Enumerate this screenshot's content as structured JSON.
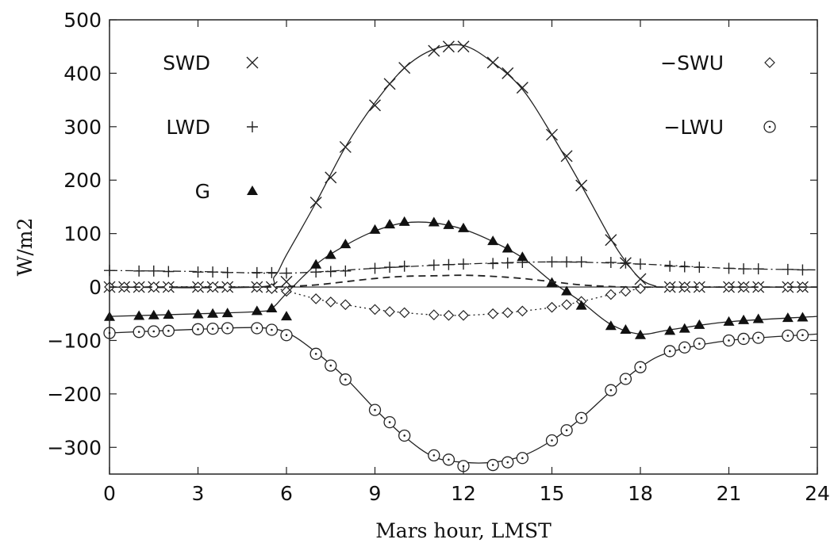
{
  "chart_data": {
    "type": "line",
    "title": "",
    "xlabel": "Mars hour, LMST",
    "ylabel": "W/m2",
    "xlim": [
      0,
      24
    ],
    "ylim": [
      -350,
      500
    ],
    "xticks": [
      0,
      3,
      6,
      9,
      12,
      15,
      18,
      21,
      24
    ],
    "yticks": [
      500,
      400,
      300,
      200,
      100,
      0,
      -100,
      -200,
      -300
    ],
    "xtick_labels": [
      "0",
      "3",
      "6",
      "9",
      "12",
      "15",
      "18",
      "21",
      "24"
    ],
    "ytick_labels": [
      "500",
      "400",
      "300",
      "200",
      "100",
      "0",
      "−100",
      "−200",
      "−300"
    ],
    "grid": false,
    "series": [
      {
        "name": "SWD",
        "marker": "x",
        "line_style": "solid",
        "points": [
          [
            0,
            0
          ],
          [
            0.5,
            0
          ],
          [
            1,
            0
          ],
          [
            1.5,
            0
          ],
          [
            2,
            0
          ],
          [
            3,
            0
          ],
          [
            3.5,
            0
          ],
          [
            4,
            0
          ],
          [
            5,
            0
          ],
          [
            5.5,
            0
          ],
          [
            6,
            10
          ],
          [
            7,
            158
          ],
          [
            7.5,
            205
          ],
          [
            8,
            262
          ],
          [
            9,
            340
          ],
          [
            9.5,
            380
          ],
          [
            10,
            410
          ],
          [
            11,
            442
          ],
          [
            11.5,
            450
          ],
          [
            12,
            450
          ],
          [
            13,
            420
          ],
          [
            13.5,
            400
          ],
          [
            14,
            373
          ],
          [
            15,
            285
          ],
          [
            15.5,
            245
          ],
          [
            16,
            190
          ],
          [
            17,
            88
          ],
          [
            17.5,
            45
          ],
          [
            18,
            15
          ],
          [
            19,
            0
          ],
          [
            19.5,
            0
          ],
          [
            20,
            0
          ],
          [
            21,
            0
          ],
          [
            21.5,
            0
          ],
          [
            22,
            0
          ],
          [
            23,
            0
          ],
          [
            23.5,
            0
          ]
        ],
        "curve": [
          [
            0,
            0
          ],
          [
            5,
            0
          ],
          [
            5.6,
            20
          ],
          [
            6,
            60
          ],
          [
            7,
            158
          ],
          [
            8,
            262
          ],
          [
            9,
            345
          ],
          [
            10,
            410
          ],
          [
            11,
            445
          ],
          [
            12,
            452
          ],
          [
            13,
            420
          ],
          [
            14,
            370
          ],
          [
            15,
            285
          ],
          [
            16,
            190
          ],
          [
            17,
            90
          ],
          [
            17.5,
            48
          ],
          [
            18,
            15
          ],
          [
            18.5,
            2
          ],
          [
            19,
            0
          ],
          [
            24,
            0
          ]
        ]
      },
      {
        "name": "LWD",
        "marker": "+",
        "line_style": "dashdot",
        "points": [
          [
            0,
            31
          ],
          [
            1,
            30
          ],
          [
            1.5,
            30
          ],
          [
            2,
            29
          ],
          [
            3,
            28
          ],
          [
            3.5,
            28
          ],
          [
            4,
            27
          ],
          [
            5,
            27
          ],
          [
            5.5,
            27
          ],
          [
            6,
            26
          ],
          [
            7,
            28
          ],
          [
            7.5,
            29
          ],
          [
            8,
            30
          ],
          [
            9,
            35
          ],
          [
            9.5,
            37
          ],
          [
            10,
            39
          ],
          [
            11,
            41
          ],
          [
            11.5,
            42
          ],
          [
            12,
            43
          ],
          [
            13,
            44
          ],
          [
            13.5,
            45
          ],
          [
            14,
            46
          ],
          [
            15,
            47
          ],
          [
            15.5,
            47
          ],
          [
            16,
            47
          ],
          [
            17,
            46
          ],
          [
            17.5,
            45
          ],
          [
            18,
            43
          ],
          [
            19,
            39
          ],
          [
            19.5,
            38
          ],
          [
            20,
            37
          ],
          [
            21,
            35
          ],
          [
            21.5,
            34
          ],
          [
            22,
            34
          ],
          [
            23,
            33
          ],
          [
            23.5,
            32
          ]
        ],
        "curve": [
          [
            0,
            31
          ],
          [
            3,
            29
          ],
          [
            6,
            26
          ],
          [
            9,
            35
          ],
          [
            12,
            43
          ],
          [
            15,
            47
          ],
          [
            18,
            43
          ],
          [
            21,
            35
          ],
          [
            24,
            32
          ]
        ]
      },
      {
        "name": "−SWU",
        "marker": "diamond",
        "line_style": "dotted",
        "points": [
          [
            0,
            0
          ],
          [
            0.5,
            0
          ],
          [
            1,
            0
          ],
          [
            1.5,
            0
          ],
          [
            2,
            0
          ],
          [
            3,
            0
          ],
          [
            3.5,
            0
          ],
          [
            4,
            0
          ],
          [
            5,
            0
          ],
          [
            5.5,
            -3
          ],
          [
            6,
            -8
          ],
          [
            7,
            -22
          ],
          [
            7.5,
            -28
          ],
          [
            8,
            -33
          ],
          [
            9,
            -42
          ],
          [
            9.5,
            -46
          ],
          [
            10,
            -48
          ],
          [
            11,
            -52
          ],
          [
            11.5,
            -53
          ],
          [
            12,
            -53
          ],
          [
            13,
            -50
          ],
          [
            13.5,
            -48
          ],
          [
            14,
            -45
          ],
          [
            15,
            -38
          ],
          [
            15.5,
            -33
          ],
          [
            16,
            -27
          ],
          [
            17,
            -14
          ],
          [
            17.5,
            -8
          ],
          [
            18,
            -3
          ],
          [
            19,
            0
          ],
          [
            19.5,
            0
          ],
          [
            20,
            0
          ],
          [
            21,
            0
          ],
          [
            21.5,
            0
          ],
          [
            22,
            0
          ],
          [
            23,
            0
          ],
          [
            23.5,
            0
          ]
        ],
        "curve": [
          [
            0,
            0
          ],
          [
            5,
            0
          ],
          [
            6,
            -8
          ],
          [
            7,
            -22
          ],
          [
            8,
            -33
          ],
          [
            9,
            -42
          ],
          [
            10,
            -48
          ],
          [
            11,
            -52
          ],
          [
            12,
            -53
          ],
          [
            13,
            -50
          ],
          [
            14,
            -45
          ],
          [
            15,
            -38
          ],
          [
            16,
            -27
          ],
          [
            17,
            -14
          ],
          [
            18,
            -3
          ],
          [
            19,
            0
          ],
          [
            24,
            0
          ]
        ]
      },
      {
        "name": "−LWU",
        "marker": "circle",
        "line_style": "solid",
        "points": [
          [
            0,
            -86
          ],
          [
            1,
            -84
          ],
          [
            1.5,
            -83
          ],
          [
            2,
            -82
          ],
          [
            3,
            -79
          ],
          [
            3.5,
            -78
          ],
          [
            4,
            -77
          ],
          [
            5,
            -77
          ],
          [
            5.5,
            -80
          ],
          [
            6,
            -90
          ],
          [
            7,
            -125
          ],
          [
            7.5,
            -147
          ],
          [
            8,
            -173
          ],
          [
            9,
            -230
          ],
          [
            9.5,
            -253
          ],
          [
            10,
            -278
          ],
          [
            11,
            -315
          ],
          [
            11.5,
            -323
          ],
          [
            12,
            -335
          ],
          [
            13,
            -333
          ],
          [
            13.5,
            -328
          ],
          [
            14,
            -320
          ],
          [
            15,
            -287
          ],
          [
            15.5,
            -268
          ],
          [
            16,
            -245
          ],
          [
            17,
            -193
          ],
          [
            17.5,
            -172
          ],
          [
            18,
            -150
          ],
          [
            19,
            -120
          ],
          [
            19.5,
            -113
          ],
          [
            20,
            -106
          ],
          [
            21,
            -100
          ],
          [
            21.5,
            -97
          ],
          [
            22,
            -95
          ],
          [
            23,
            -91
          ],
          [
            23.5,
            -90
          ]
        ],
        "curve": [
          [
            0,
            -86
          ],
          [
            3,
            -79
          ],
          [
            5,
            -76
          ],
          [
            6,
            -85
          ],
          [
            7,
            -122
          ],
          [
            8,
            -170
          ],
          [
            9,
            -228
          ],
          [
            10,
            -280
          ],
          [
            11,
            -318
          ],
          [
            12,
            -328
          ],
          [
            13,
            -328
          ],
          [
            14,
            -316
          ],
          [
            15,
            -287
          ],
          [
            16,
            -245
          ],
          [
            17,
            -195
          ],
          [
            18,
            -150
          ],
          [
            19,
            -122
          ],
          [
            21,
            -100
          ],
          [
            24,
            -88
          ]
        ]
      },
      {
        "name": "G",
        "marker": "triangle",
        "line_style": "solid",
        "points": [
          [
            0,
            -56
          ],
          [
            1,
            -54
          ],
          [
            1.5,
            -53
          ],
          [
            2,
            -52
          ],
          [
            3,
            -51
          ],
          [
            3.5,
            -50
          ],
          [
            4,
            -49
          ],
          [
            5,
            -45
          ],
          [
            5.5,
            -40
          ],
          [
            6,
            -55
          ],
          [
            7,
            42
          ],
          [
            7.5,
            60
          ],
          [
            8,
            80
          ],
          [
            9,
            107
          ],
          [
            9.5,
            117
          ],
          [
            10,
            122
          ],
          [
            11,
            121
          ],
          [
            11.5,
            116
          ],
          [
            12,
            110
          ],
          [
            13,
            86
          ],
          [
            13.5,
            72
          ],
          [
            14,
            56
          ],
          [
            15,
            8
          ],
          [
            15.5,
            -8
          ],
          [
            16,
            -35
          ],
          [
            17,
            -73
          ],
          [
            17.5,
            -80
          ],
          [
            18,
            -90
          ],
          [
            19,
            -82
          ],
          [
            19.5,
            -78
          ],
          [
            20,
            -71
          ],
          [
            21,
            -65
          ],
          [
            21.5,
            -62
          ],
          [
            22,
            -60
          ],
          [
            23,
            -58
          ],
          [
            23.5,
            -57
          ]
        ],
        "curve": [
          [
            0,
            -55
          ],
          [
            3,
            -50
          ],
          [
            5,
            -46
          ],
          [
            5.5,
            -40
          ],
          [
            6,
            -12
          ],
          [
            7,
            42
          ],
          [
            8,
            78
          ],
          [
            9,
            105
          ],
          [
            10,
            120
          ],
          [
            11,
            120
          ],
          [
            12,
            108
          ],
          [
            13,
            85
          ],
          [
            14,
            55
          ],
          [
            15,
            10
          ],
          [
            16,
            -28
          ],
          [
            17,
            -70
          ],
          [
            18,
            -88
          ],
          [
            19,
            -80
          ],
          [
            21,
            -65
          ],
          [
            24,
            -55
          ]
        ]
      },
      {
        "name": "",
        "marker": "none",
        "line_style": "dashed",
        "curve": [
          [
            0,
            0
          ],
          [
            5,
            0
          ],
          [
            6,
            1
          ],
          [
            7,
            4
          ],
          [
            8,
            10
          ],
          [
            9,
            16
          ],
          [
            10,
            20
          ],
          [
            11,
            21
          ],
          [
            12,
            22
          ],
          [
            13,
            20
          ],
          [
            14,
            16
          ],
          [
            15,
            10
          ],
          [
            16,
            4
          ],
          [
            17,
            1
          ],
          [
            18,
            0
          ],
          [
            24,
            0
          ]
        ]
      }
    ],
    "zero_line": true,
    "legend": [
      {
        "label": "SWD",
        "marker": "x",
        "placement": "top-left"
      },
      {
        "label": "LWD",
        "marker": "+",
        "placement": "top-left"
      },
      {
        "label": "G",
        "marker": "triangle",
        "placement": "top-left"
      },
      {
        "label": "−SWU",
        "marker": "diamond",
        "placement": "top-right"
      },
      {
        "label": "−LWU",
        "marker": "circle",
        "placement": "top-right"
      }
    ]
  }
}
